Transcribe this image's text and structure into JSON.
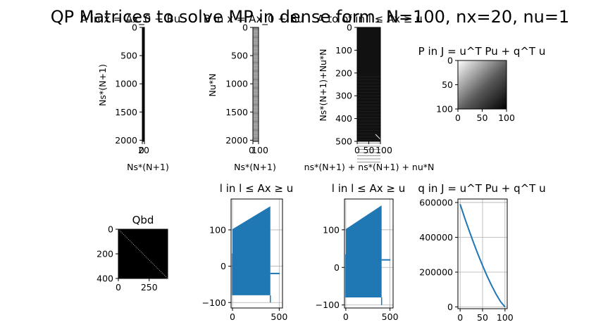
{
  "suptitle": "QP Matrices to solve MP in dense form. N=100, nx=20, nu=1",
  "colors": {
    "line": "#1f77b4",
    "grid": "#b0b0b0",
    "black": "#000000"
  },
  "chart_data": [
    {
      "id": "A",
      "type": "heatmap",
      "title": "A in x = Ax_0 + Bu",
      "xlabel": "Ns*(N+1)",
      "ylabel": "Ns*(N+1)",
      "xticks": [
        {
          "v": 0,
          "label": "0"
        },
        {
          "v": 20,
          "label": "20"
        }
      ],
      "yticks": [
        {
          "v": 0,
          "label": "0"
        },
        {
          "v": 500,
          "label": "500"
        },
        {
          "v": 1000,
          "label": "1000"
        },
        {
          "v": 1500,
          "label": "1500"
        },
        {
          "v": 2000,
          "label": "2000"
        }
      ],
      "shape": [
        2020,
        20
      ]
    },
    {
      "id": "B",
      "type": "heatmap",
      "title": "B in x = Ax_0 + Bu",
      "xlabel": "Ns*(N+1)",
      "ylabel": "Nu*N",
      "xticks": [
        {
          "v": 0,
          "label": "0"
        },
        {
          "v": 100,
          "label": "100"
        }
      ],
      "yticks": [
        {
          "v": 0,
          "label": "0"
        },
        {
          "v": 500,
          "label": "500"
        },
        {
          "v": 1000,
          "label": "1000"
        },
        {
          "v": 1500,
          "label": "1500"
        },
        {
          "v": 2000,
          "label": "2000"
        }
      ],
      "shape": [
        2020,
        100
      ]
    },
    {
      "id": "Acon",
      "type": "heatmap",
      "title": "A to of in  l ≤ Ax ≥ u",
      "xlabel": "ns*(N+1) + ns*(N+1) + nu*N",
      "ylabel": "Ns*(N+1)+Nu*N",
      "xticks": [
        {
          "v": 0,
          "label": "0"
        },
        {
          "v": 50,
          "label": "50"
        },
        {
          "v": 100,
          "label": "100"
        }
      ],
      "yticks": [
        {
          "v": 0,
          "label": "0"
        },
        {
          "v": 100,
          "label": "100"
        },
        {
          "v": 200,
          "label": "200"
        },
        {
          "v": 300,
          "label": "300"
        },
        {
          "v": 400,
          "label": "400"
        },
        {
          "v": 500,
          "label": "500"
        }
      ],
      "shape": [
        500,
        100
      ]
    },
    {
      "id": "P",
      "type": "heatmap",
      "title": "P in  J = u^T Pu + q^T u",
      "xticks": [
        {
          "v": 0,
          "label": "0"
        },
        {
          "v": 50,
          "label": "50"
        },
        {
          "v": 100,
          "label": "100"
        }
      ],
      "yticks": [
        {
          "v": 0,
          "label": "0"
        },
        {
          "v": 50,
          "label": "50"
        },
        {
          "v": 100,
          "label": "100"
        }
      ],
      "shape": [
        100,
        100
      ]
    },
    {
      "id": "Qbd",
      "type": "heatmap",
      "title": "Qbd",
      "xticks": [
        {
          "v": 0,
          "label": "0"
        },
        {
          "v": 250,
          "label": "250"
        }
      ],
      "yticks": [
        {
          "v": 0,
          "label": "0"
        },
        {
          "v": 200,
          "label": "200"
        },
        {
          "v": 400,
          "label": "400"
        }
      ],
      "shape": [
        400,
        400
      ]
    },
    {
      "id": "l",
      "type": "line",
      "title": "l in  l ≤ Ax ≥ u",
      "xlim": [
        -15,
        535
      ],
      "ylim": [
        -115,
        185
      ],
      "xticks": [
        {
          "v": 0,
          "label": "0"
        },
        {
          "v": 500,
          "label": "500"
        }
      ],
      "yticks": [
        {
          "v": -100,
          "label": "−100"
        },
        {
          "v": 0,
          "label": "0"
        },
        {
          "v": 100,
          "label": "100"
        }
      ],
      "band_x": [
        0,
        405
      ],
      "band_lower": -80,
      "band_upper_start": 102,
      "band_upper_end": 165,
      "spikes": [
        {
          "x": 0,
          "y": 35
        },
        {
          "x": 405,
          "y": -100
        }
      ],
      "tail": {
        "x": [
          405,
          505
        ],
        "y": -20
      }
    },
    {
      "id": "u",
      "type": "line",
      "title": "l in  l ≤ Ax ≥ u",
      "xlim": [
        -15,
        535
      ],
      "ylim": [
        -108,
        182
      ],
      "xticks": [
        {
          "v": 0,
          "label": "0"
        },
        {
          "v": 500,
          "label": "500"
        }
      ],
      "yticks": [
        {
          "v": -100,
          "label": "−100"
        },
        {
          "v": 0,
          "label": "0"
        },
        {
          "v": 100,
          "label": "100"
        }
      ],
      "band_x": [
        0,
        405
      ],
      "band_lower": -80,
      "band_upper_start": 102,
      "band_upper_end": 165,
      "spikes": [
        {
          "x": 0,
          "y": 35
        },
        {
          "x": 405,
          "y": -100
        }
      ],
      "tail": {
        "x": [
          405,
          505
        ],
        "y": 20
      }
    },
    {
      "id": "q",
      "type": "line",
      "title": "q in  J = u^T Pu + q^T u",
      "xlim": [
        -5,
        105
      ],
      "ylim": [
        -10000,
        620000
      ],
      "xticks": [
        {
          "v": 0,
          "label": "0"
        },
        {
          "v": 50,
          "label": "50"
        },
        {
          "v": 100,
          "label": "100"
        }
      ],
      "yticks": [
        {
          "v": 0,
          "label": "0"
        },
        {
          "v": 200000,
          "label": "200000"
        },
        {
          "v": 400000,
          "label": "400000"
        },
        {
          "v": 600000,
          "label": "600000"
        }
      ],
      "x": [
        0,
        10,
        20,
        30,
        40,
        50,
        60,
        70,
        80,
        90,
        100
      ],
      "y": [
        590000,
        512000,
        439000,
        368000,
        301000,
        238000,
        178000,
        124000,
        74000,
        31000,
        0
      ]
    }
  ]
}
